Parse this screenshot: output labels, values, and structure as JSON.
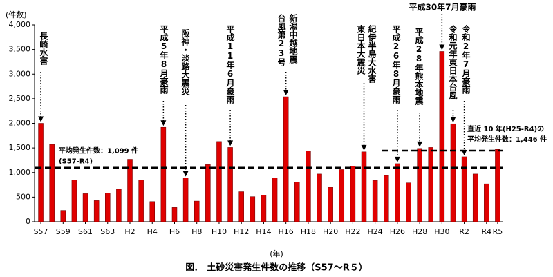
{
  "chart_data": {
    "type": "bar",
    "title": "図.　土砂災害発生件数の推移（S57～R５）",
    "y_label": "(件数)",
    "x_label": "(年)",
    "categories": [
      "S57",
      null,
      "S59",
      null,
      "S61",
      null,
      "S63",
      null,
      "H2",
      null,
      "H4",
      null,
      "H6",
      null,
      "H8",
      null,
      "H10",
      null,
      "H12",
      null,
      "H14",
      null,
      "H16",
      null,
      "H18",
      null,
      "H20",
      null,
      "H22",
      null,
      "H24",
      null,
      "H26",
      null,
      "H28",
      null,
      "H30",
      null,
      "R2",
      null,
      "R4",
      "R5"
    ],
    "values": [
      2000,
      1570,
      230,
      850,
      570,
      430,
      580,
      660,
      1270,
      850,
      410,
      1920,
      290,
      890,
      420,
      1160,
      1630,
      1510,
      610,
      510,
      540,
      890,
      2540,
      810,
      1440,
      970,
      700,
      1060,
      1130,
      1420,
      840,
      940,
      1180,
      790,
      1490,
      1510,
      3460,
      1990,
      1320,
      970,
      770,
      1470
    ],
    "color": "#e00000",
    "ylim": [
      0,
      4000
    ],
    "yticks": [
      0,
      500,
      {
        "value": 1000,
        "label": "1,000"
      },
      {
        "value": 1500,
        "label": "1,500"
      },
      {
        "value": 2000,
        "label": "2,000"
      },
      {
        "value": 2500,
        "label": "2,500"
      },
      {
        "value": 3000,
        "label": "3,000"
      },
      {
        "value": 3500,
        "label": "3,500"
      },
      {
        "value": 4000,
        "label": "4,000"
      }
    ],
    "grid": false,
    "reference_lines": [
      {
        "value": 1099,
        "label": "平均発生件数：1,099 件",
        "sublabel": "(S57-R4)"
      },
      {
        "value": 1446,
        "label": "直近 10 年(H25-R4)の",
        "sublabel": "平均発生件数：1,446 件"
      }
    ],
    "annotations": [
      "長崎水害",
      "平成5年8月豪雨",
      "阪神・淡路大震災",
      "平成11年6月豪雨",
      "新潟中越地震",
      "台風第23号",
      "紀伊半島大水害",
      "東日本大震災",
      "平成26年8月豪雨",
      "平成28年熊本地震",
      "平成30年7月豪雨",
      "令和元年東日本台風",
      "令和2年7月豪雨"
    ]
  }
}
